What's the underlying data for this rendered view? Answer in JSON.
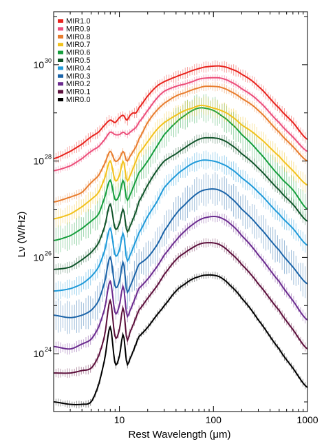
{
  "chart_data": {
    "type": "line",
    "xlabel": "Rest Wavelength (μm)",
    "ylabel": "Lν (W/Hz)",
    "xscale": "log",
    "yscale": "log",
    "xlim": [
      2,
      1000
    ],
    "ylim_log10": [
      22.8,
      31.1
    ],
    "x_ticks": [
      {
        "value": 10,
        "label": "10"
      },
      {
        "value": 100,
        "label": "100"
      },
      {
        "value": 1000,
        "label": "1000"
      }
    ],
    "y_ticks": [
      {
        "exp": 24,
        "label": "10"
      },
      {
        "exp": 26,
        "label": "10"
      },
      {
        "exp": 28,
        "label": "10"
      },
      {
        "exp": 30,
        "label": "10"
      }
    ],
    "legend_position": "top-left",
    "wavelengths": [
      2,
      3,
      4,
      5,
      6,
      7,
      8,
      9,
      10,
      11,
      12,
      13,
      14,
      15,
      16,
      20,
      25,
      30,
      40,
      50,
      60,
      70,
      80,
      100,
      120,
      150,
      200,
      300,
      500,
      700,
      1000
    ],
    "series": [
      {
        "name": "MIR1.0",
        "color": "#e8231d",
        "log_values": [
          28.05,
          28.2,
          28.35,
          28.5,
          28.6,
          28.75,
          28.85,
          28.8,
          28.9,
          28.95,
          28.85,
          28.95,
          29.0,
          29.0,
          29.1,
          29.35,
          29.55,
          29.65,
          29.75,
          29.82,
          29.88,
          29.92,
          29.95,
          29.97,
          29.97,
          29.92,
          29.8,
          29.55,
          29.1,
          28.8,
          28.45
        ],
        "band": 0.12
      },
      {
        "name": "MIR0.9",
        "color": "#ec4e7a",
        "log_values": [
          27.8,
          27.9,
          28.05,
          28.2,
          28.3,
          28.45,
          28.6,
          28.55,
          28.55,
          28.6,
          28.55,
          28.6,
          28.65,
          28.7,
          28.8,
          29.05,
          29.3,
          29.45,
          29.55,
          29.6,
          29.65,
          29.7,
          29.72,
          29.73,
          29.72,
          29.65,
          29.5,
          29.25,
          28.8,
          28.5,
          28.2
        ],
        "band": 0.08
      },
      {
        "name": "MIR0.8",
        "color": "#e87d2e",
        "log_values": [
          27.15,
          27.25,
          27.35,
          27.55,
          27.7,
          27.95,
          28.2,
          28.0,
          28.05,
          28.2,
          28.0,
          28.1,
          28.2,
          28.3,
          28.45,
          28.8,
          29.05,
          29.2,
          29.35,
          29.42,
          29.48,
          29.52,
          29.55,
          29.55,
          29.53,
          29.45,
          29.3,
          29.05,
          28.6,
          28.3,
          28.0
        ],
        "band": 0.1
      },
      {
        "name": "MIR0.7",
        "color": "#f2c21c",
        "log_values": [
          26.8,
          26.9,
          27.05,
          27.2,
          27.35,
          27.65,
          28.0,
          27.6,
          27.7,
          28.0,
          27.6,
          27.7,
          27.85,
          28.0,
          28.15,
          28.4,
          28.65,
          28.8,
          28.95,
          29.05,
          29.1,
          29.15,
          29.15,
          29.1,
          29.05,
          28.95,
          28.75,
          28.5,
          28.1,
          27.8,
          27.5
        ],
        "band": 0.2
      },
      {
        "name": "MIR0.6",
        "color": "#159e3c",
        "log_values": [
          26.35,
          26.45,
          26.6,
          26.75,
          26.9,
          27.25,
          27.6,
          27.2,
          27.3,
          27.6,
          27.2,
          27.3,
          27.45,
          27.6,
          27.75,
          28.0,
          28.3,
          28.55,
          28.8,
          28.95,
          29.05,
          29.1,
          29.1,
          29.05,
          28.95,
          28.8,
          28.55,
          28.2,
          27.7,
          27.4,
          27.0
        ],
        "band": 0.3
      },
      {
        "name": "MIR0.5",
        "color": "#10542a",
        "log_values": [
          25.75,
          25.8,
          25.95,
          26.1,
          26.3,
          26.65,
          27.1,
          26.6,
          26.7,
          27.0,
          26.55,
          26.65,
          26.8,
          26.95,
          27.15,
          27.5,
          27.8,
          28.0,
          28.15,
          28.28,
          28.38,
          28.45,
          28.48,
          28.48,
          28.45,
          28.35,
          28.15,
          27.85,
          27.4,
          27.1,
          26.75
        ],
        "band": 0.12
      },
      {
        "name": "MIR0.4",
        "color": "#1f9ad9",
        "log_values": [
          25.3,
          25.35,
          25.45,
          25.6,
          25.8,
          26.15,
          26.6,
          26.05,
          26.15,
          26.5,
          25.95,
          26.05,
          26.2,
          26.35,
          26.5,
          26.85,
          27.15,
          27.45,
          27.7,
          27.85,
          27.95,
          28.0,
          28.02,
          28.0,
          27.95,
          27.85,
          27.65,
          27.35,
          26.9,
          26.6,
          26.25
        ],
        "band": 0.2
      },
      {
        "name": "MIR0.3",
        "color": "#1a63a8",
        "log_values": [
          24.8,
          24.75,
          24.8,
          24.9,
          25.1,
          25.5,
          26.0,
          25.4,
          25.5,
          25.9,
          25.3,
          25.4,
          25.55,
          25.7,
          25.85,
          26.0,
          26.25,
          26.55,
          26.9,
          27.1,
          27.25,
          27.35,
          27.4,
          27.42,
          27.38,
          27.25,
          27.0,
          26.65,
          26.15,
          25.8,
          25.45
        ],
        "band": 0.35
      },
      {
        "name": "MIR0.2",
        "color": "#6b2b8f",
        "log_values": [
          24.15,
          24.1,
          24.2,
          24.3,
          24.55,
          24.95,
          25.5,
          24.85,
          25.0,
          25.4,
          24.8,
          24.9,
          25.05,
          25.2,
          25.35,
          25.55,
          25.8,
          26.05,
          26.35,
          26.55,
          26.68,
          26.77,
          26.82,
          26.85,
          26.82,
          26.7,
          26.45,
          26.05,
          25.5,
          25.1,
          24.7
        ],
        "band": 0.12
      },
      {
        "name": "MIR0.1",
        "color": "#5c0f3b",
        "log_values": [
          23.6,
          23.6,
          23.65,
          23.7,
          23.95,
          24.4,
          25.1,
          24.35,
          24.5,
          24.95,
          24.3,
          24.45,
          24.6,
          24.75,
          24.9,
          25.15,
          25.4,
          25.65,
          25.95,
          26.1,
          26.2,
          26.27,
          26.3,
          26.3,
          26.25,
          26.1,
          25.85,
          25.45,
          24.9,
          24.5,
          24.1
        ],
        "band": 0.1
      },
      {
        "name": "MIR0.0",
        "color": "#000000",
        "log_values": [
          23.0,
          22.95,
          22.95,
          23.0,
          23.35,
          23.9,
          24.55,
          23.8,
          23.95,
          24.4,
          23.8,
          23.9,
          24.05,
          24.2,
          24.35,
          24.55,
          24.8,
          25.0,
          25.3,
          25.45,
          25.55,
          25.6,
          25.63,
          25.63,
          25.58,
          25.42,
          25.15,
          24.7,
          24.1,
          23.7,
          23.3
        ],
        "band": 0.08
      }
    ]
  }
}
